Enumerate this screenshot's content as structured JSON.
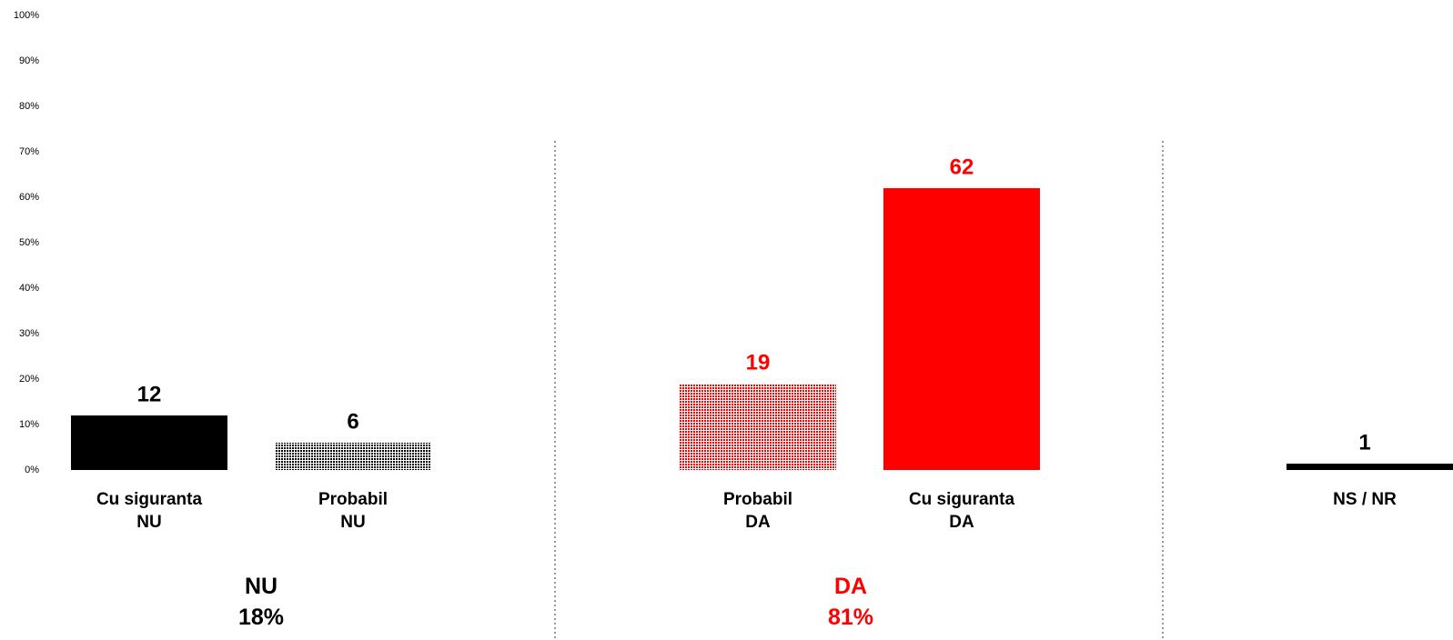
{
  "chart_data": {
    "type": "bar",
    "categories": [
      "Cu siguranta\nNU",
      "Probabil\nNU",
      "Probabil\nDA",
      "Cu siguranta\nDA",
      "NS / NR"
    ],
    "values": [
      12,
      6,
      19,
      62,
      1
    ],
    "colors": [
      "#000000",
      "#000000",
      "#ff0000",
      "#ff0000",
      "#000000"
    ],
    "bar_styles": [
      "solid",
      "dotted",
      "dotted",
      "solid",
      "solid"
    ],
    "ylim": [
      0,
      100
    ],
    "yticks": [
      {
        "value": 0,
        "label": "0%"
      },
      {
        "value": 10,
        "label": "10%"
      },
      {
        "value": 20,
        "label": "20%"
      },
      {
        "value": 30,
        "label": "30%"
      },
      {
        "value": 40,
        "label": "40%"
      },
      {
        "value": 50,
        "label": "50%"
      },
      {
        "value": 60,
        "label": "60%"
      },
      {
        "value": 70,
        "label": "70%"
      },
      {
        "value": 80,
        "label": "80%"
      },
      {
        "value": 90,
        "label": "90%"
      },
      {
        "value": 100,
        "label": "100%"
      }
    ],
    "grid": false,
    "groups": [
      {
        "name": "NU",
        "total": "18%",
        "color": "#000000"
      },
      {
        "name": "DA",
        "total": "81%",
        "color": "#ff0000"
      }
    ]
  }
}
